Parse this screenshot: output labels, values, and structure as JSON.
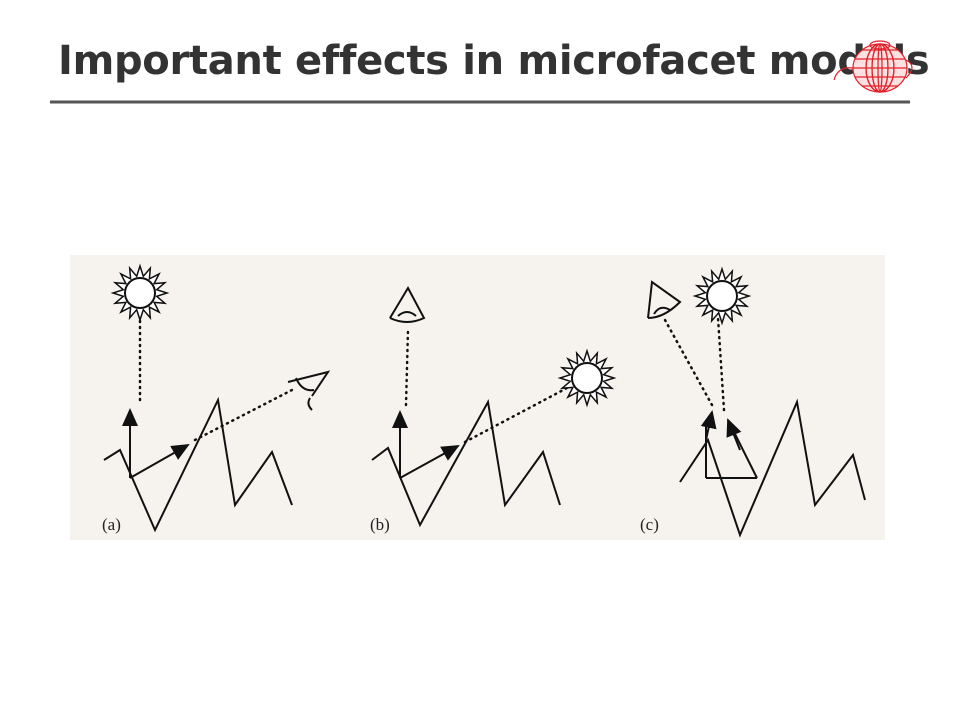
{
  "header": {
    "title": "Important effects in microfacet models"
  },
  "figure": {
    "panels": [
      {
        "label": "(a)"
      },
      {
        "label": "(b)"
      },
      {
        "label": "(c)"
      }
    ]
  }
}
